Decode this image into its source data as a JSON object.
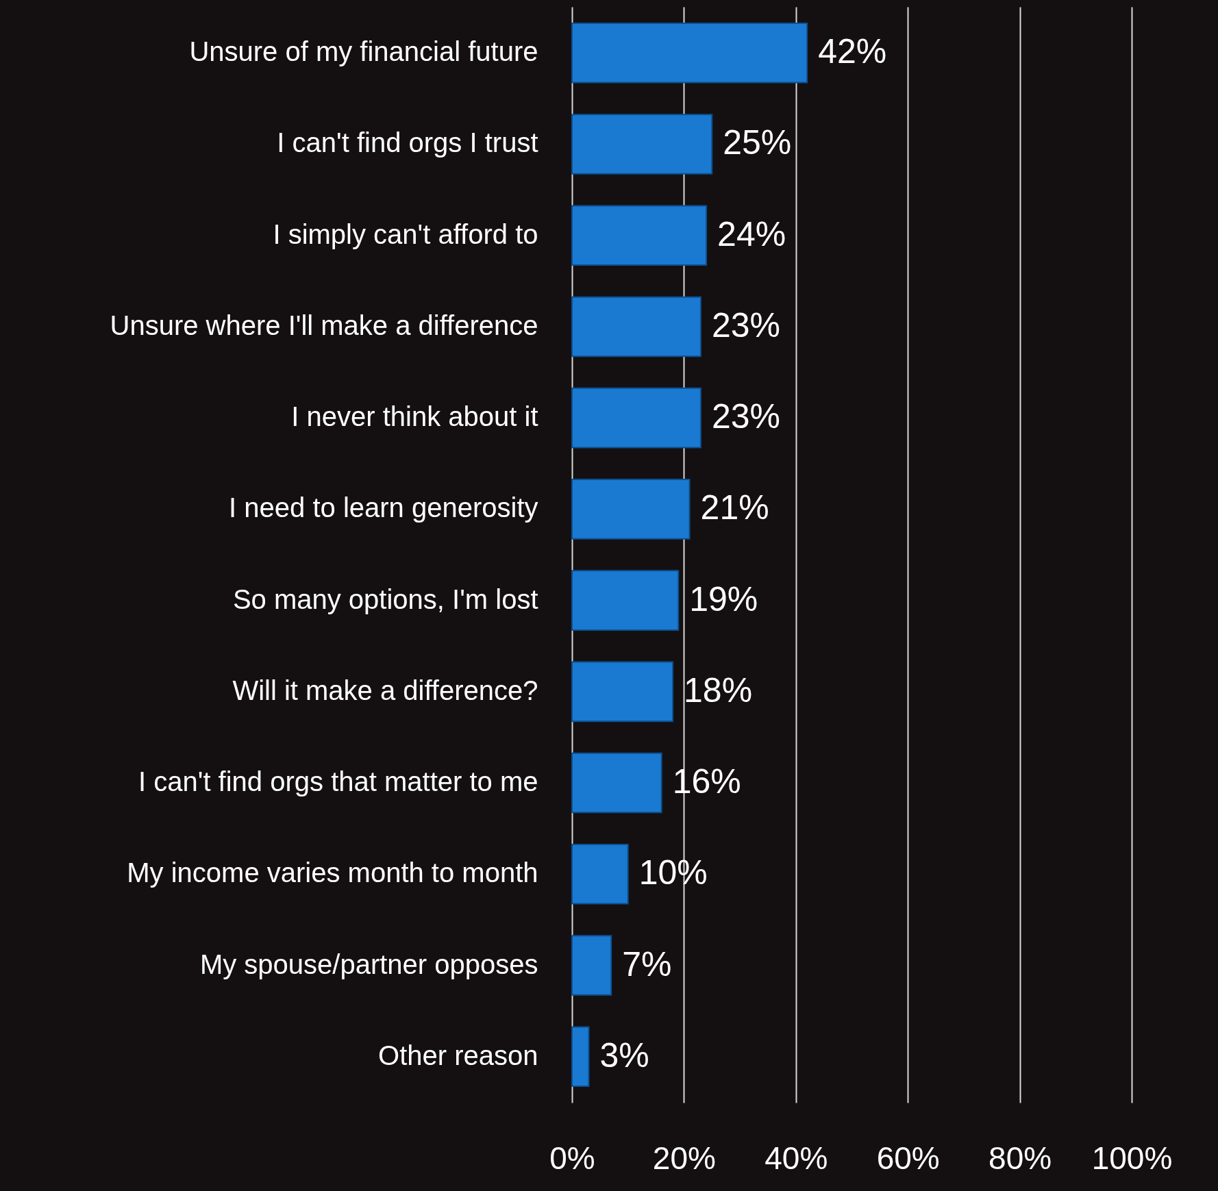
{
  "chart_data": {
    "type": "bar",
    "orientation": "horizontal",
    "categories": [
      "Unsure of my financial future",
      "I can't find orgs I trust",
      "I simply can't afford to",
      "Unsure where I'll make a difference",
      "I never think about it",
      "I need to learn generosity",
      "So many options, I'm lost",
      "Will it make a difference?",
      "I can't find orgs that matter to me",
      "My income varies month to month",
      "My spouse/partner opposes",
      "Other reason"
    ],
    "values": [
      42,
      25,
      24,
      23,
      23,
      21,
      19,
      18,
      16,
      10,
      7,
      3
    ],
    "value_labels": [
      "42%",
      "25%",
      "24%",
      "23%",
      "23%",
      "21%",
      "19%",
      "18%",
      "16%",
      "10%",
      "7%",
      "3%"
    ],
    "color": "#1a7ad2",
    "xlim": [
      0,
      100
    ],
    "xticks": [
      {
        "value": 0,
        "label": "0%"
      },
      {
        "value": 20,
        "label": "20%"
      },
      {
        "value": 40,
        "label": "40%"
      },
      {
        "value": 60,
        "label": "60%"
      },
      {
        "value": 80,
        "label": "80%"
      },
      {
        "value": 100,
        "label": "100%"
      }
    ],
    "grid": "x"
  }
}
